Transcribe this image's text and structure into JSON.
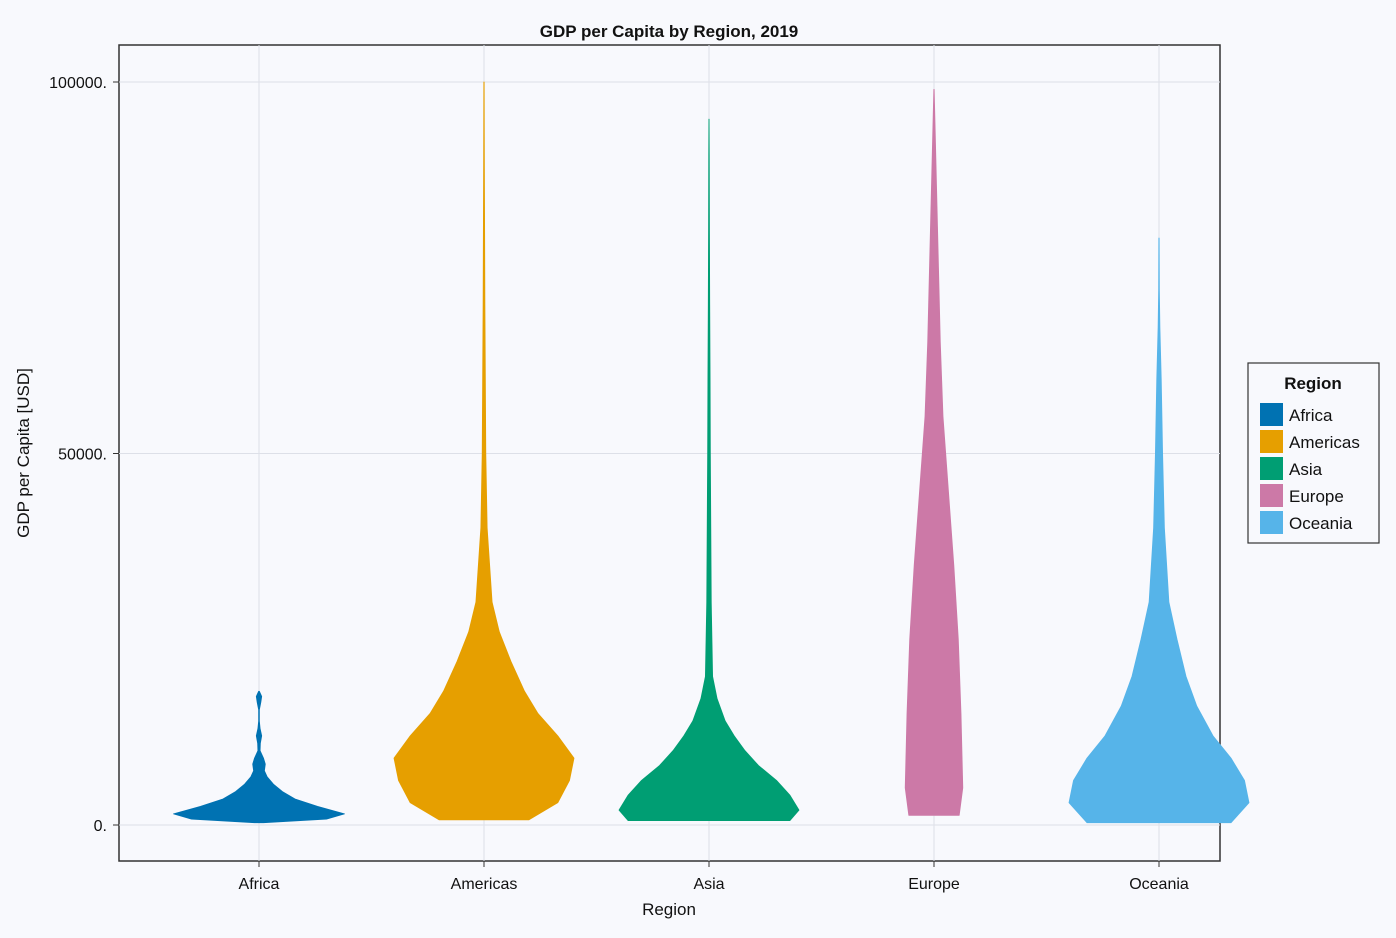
{
  "chart_data": {
    "type": "violin",
    "title": "GDP per Capita by Region, 2019",
    "xlabel": "Region",
    "ylabel": "GDP per Capita [USD]",
    "ylim": [
      -5000,
      105000
    ],
    "yticks": [
      0,
      50000,
      100000
    ],
    "ytick_labels": [
      "0.",
      "50000.",
      "100000."
    ],
    "grid": true,
    "legend": {
      "title": "Region",
      "placement": "right",
      "entries": [
        "Africa",
        "Americas",
        "Asia",
        "Europe",
        "Oceania"
      ]
    },
    "categories": [
      "Africa",
      "Americas",
      "Asia",
      "Europe",
      "Oceania"
    ],
    "series": [
      {
        "name": "Africa",
        "color": "#0072b2",
        "min": 300,
        "max": 18000,
        "profile": [
          [
            300,
            0.05
          ],
          [
            800,
            0.75
          ],
          [
            1500,
            0.95
          ],
          [
            2500,
            0.65
          ],
          [
            3500,
            0.4
          ],
          [
            4500,
            0.26
          ],
          [
            5500,
            0.16
          ],
          [
            6500,
            0.09
          ],
          [
            7300,
            0.06
          ],
          [
            8200,
            0.07
          ],
          [
            9000,
            0.05
          ],
          [
            10000,
            0.012
          ],
          [
            11000,
            0.015
          ],
          [
            12000,
            0.03
          ],
          [
            13000,
            0.012
          ],
          [
            14000,
            0.004
          ],
          [
            15500,
            0.004
          ],
          [
            16500,
            0.02
          ],
          [
            17300,
            0.03
          ],
          [
            18000,
            0.004
          ]
        ]
      },
      {
        "name": "Americas",
        "color": "#e69f00",
        "min": 700,
        "max": 100000,
        "profile": [
          [
            700,
            0.5
          ],
          [
            3000,
            0.82
          ],
          [
            6000,
            0.95
          ],
          [
            9000,
            1.0
          ],
          [
            12000,
            0.82
          ],
          [
            15000,
            0.6
          ],
          [
            18000,
            0.45
          ],
          [
            22000,
            0.3
          ],
          [
            26000,
            0.17
          ],
          [
            30000,
            0.09
          ],
          [
            40000,
            0.035
          ],
          [
            50000,
            0.02
          ],
          [
            60000,
            0.015
          ],
          [
            70000,
            0.01
          ],
          [
            80000,
            0.007
          ],
          [
            90000,
            0.004
          ],
          [
            100000,
            0.002
          ]
        ]
      },
      {
        "name": "Asia",
        "color": "#009e73",
        "min": 600,
        "max": 95000,
        "profile": [
          [
            600,
            0.9
          ],
          [
            2000,
            1.0
          ],
          [
            4000,
            0.9
          ],
          [
            6000,
            0.75
          ],
          [
            8000,
            0.55
          ],
          [
            10000,
            0.4
          ],
          [
            12000,
            0.28
          ],
          [
            14000,
            0.18
          ],
          [
            17000,
            0.09
          ],
          [
            20000,
            0.04
          ],
          [
            30000,
            0.025
          ],
          [
            40000,
            0.02
          ],
          [
            50000,
            0.015
          ],
          [
            60000,
            0.012
          ],
          [
            70000,
            0.008
          ],
          [
            80000,
            0.005
          ],
          [
            90000,
            0.003
          ],
          [
            95000,
            0.001
          ]
        ]
      },
      {
        "name": "Europe",
        "color": "#cc79a7",
        "min": 1300,
        "max": 99000,
        "profile": [
          [
            1300,
            0.28
          ],
          [
            5000,
            0.32
          ],
          [
            15000,
            0.3
          ],
          [
            25000,
            0.27
          ],
          [
            35000,
            0.22
          ],
          [
            45000,
            0.16
          ],
          [
            55000,
            0.1
          ],
          [
            65000,
            0.07
          ],
          [
            75000,
            0.05
          ],
          [
            85000,
            0.03
          ],
          [
            95000,
            0.01
          ],
          [
            99000,
            0.002
          ]
        ]
      },
      {
        "name": "Oceania",
        "color": "#56b4e9",
        "min": 300,
        "max": 79000,
        "profile": [
          [
            300,
            0.8
          ],
          [
            3000,
            1.0
          ],
          [
            6000,
            0.95
          ],
          [
            9000,
            0.8
          ],
          [
            12000,
            0.6
          ],
          [
            16000,
            0.42
          ],
          [
            20000,
            0.3
          ],
          [
            25000,
            0.2
          ],
          [
            30000,
            0.11
          ],
          [
            40000,
            0.06
          ],
          [
            50000,
            0.04
          ],
          [
            60000,
            0.025
          ],
          [
            67000,
            0.01
          ],
          [
            72000,
            0.004
          ],
          [
            79000,
            0.002
          ]
        ]
      }
    ]
  }
}
